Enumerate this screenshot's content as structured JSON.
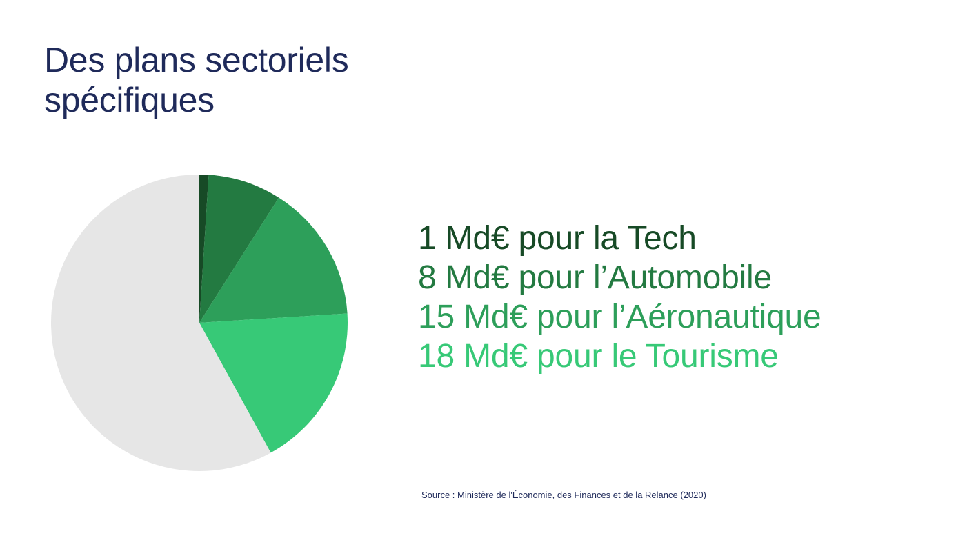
{
  "title": {
    "line1": "Des plans sectoriels",
    "line2": "spécifiques"
  },
  "legend": [
    {
      "text": "1 Md€ pour la Tech",
      "color": "#174a26"
    },
    {
      "text": "8 Md€ pour l’Automobile",
      "color": "#237a41"
    },
    {
      "text": "15 Md€ pour l’Aéronautique",
      "color": "#2d9f5a"
    },
    {
      "text": "18 Md€ pour le Tourisme",
      "color": "#37c977"
    }
  ],
  "source": "Source : Ministère de l'Économie, des Finances et de la Relance (2020)",
  "chart_data": {
    "type": "pie",
    "unit": "Md€",
    "categories": [
      "Tech",
      "Automobile",
      "Aéronautique",
      "Tourisme",
      ""
    ],
    "values": [
      1,
      8,
      15,
      18,
      58
    ],
    "colors": [
      "#174a26",
      "#237a41",
      "#2d9f5a",
      "#37c977",
      "#e6e6e6"
    ],
    "start": "12 o'clock",
    "direction": "clockwise"
  }
}
